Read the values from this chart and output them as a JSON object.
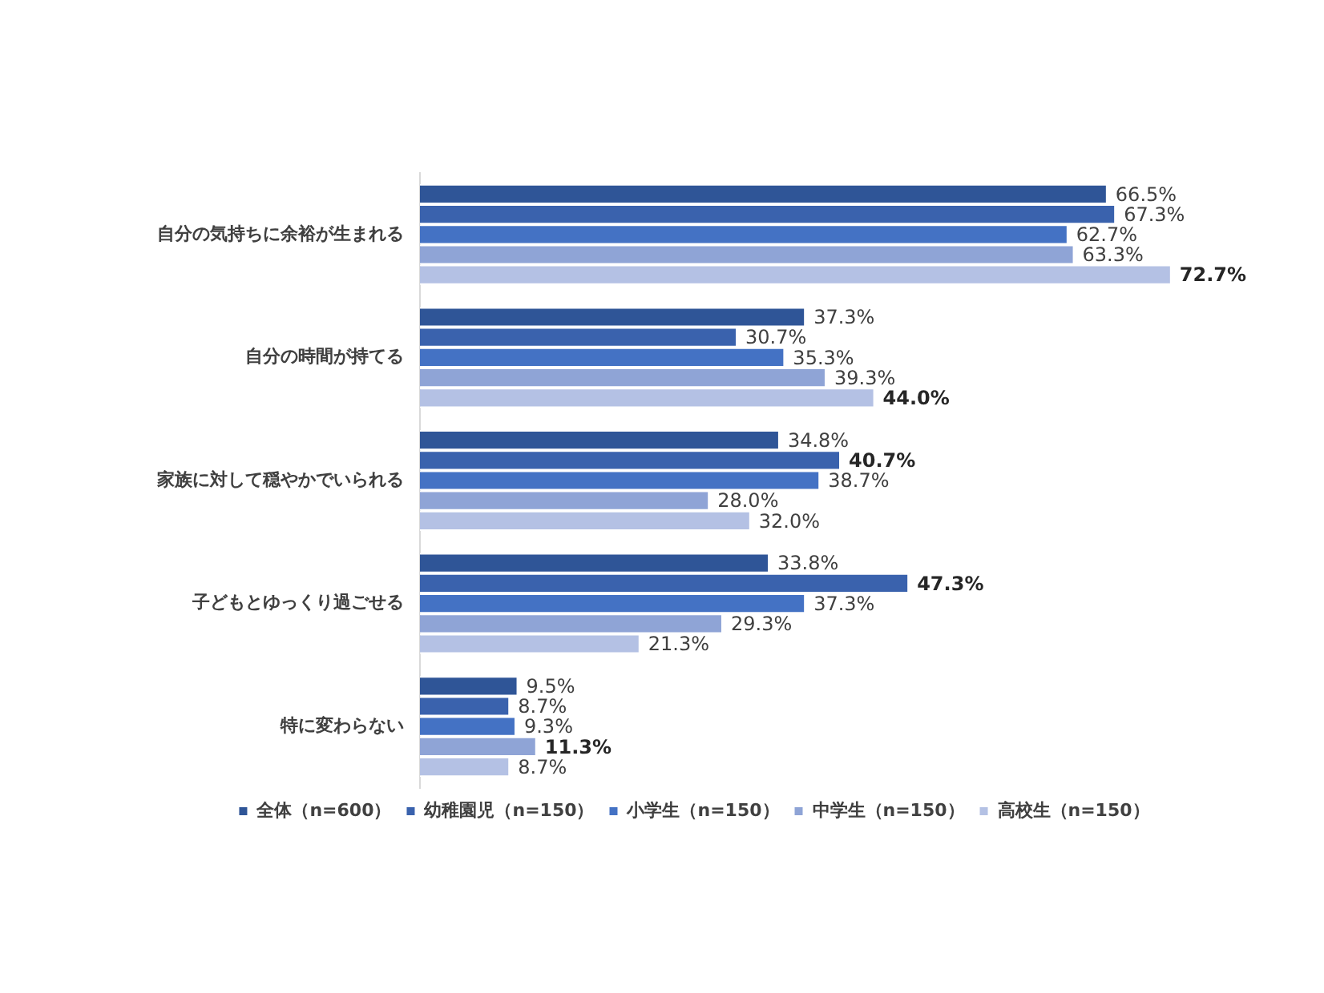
{
  "chart_data": {
    "type": "bar",
    "orientation": "horizontal",
    "categories": [
      "自分の気持ちに余裕が生まれる",
      "自分の時間が持てる",
      "家族に対して穏やかでいられる",
      "子どもとゆっくり過ごせる",
      "特に変わらない"
    ],
    "series": [
      {
        "name": "全体（n=600）",
        "color": "#2f5597",
        "values": [
          66.5,
          37.3,
          34.8,
          33.8,
          9.5
        ],
        "value_labels": [
          "66.5%",
          "37.3%",
          "34.8%",
          "33.8%",
          "9.5%"
        ]
      },
      {
        "name": "幼稚園児（n=150）",
        "color": "#3a62ad",
        "values": [
          67.3,
          30.7,
          40.7,
          47.3,
          8.7
        ],
        "value_labels": [
          "67.3%",
          "30.7%",
          "40.7%",
          "47.3%",
          "8.7%"
        ]
      },
      {
        "name": "小学生（n=150）",
        "color": "#4472c4",
        "values": [
          62.7,
          35.3,
          38.7,
          37.3,
          9.3
        ],
        "value_labels": [
          "62.7%",
          "35.3%",
          "38.7%",
          "37.3%",
          "9.3%"
        ]
      },
      {
        "name": "中学生（n=150）",
        "color": "#8fa4d6",
        "values": [
          63.3,
          39.3,
          28.0,
          29.3,
          11.3
        ],
        "value_labels": [
          "63.3%",
          "39.3%",
          "28.0%",
          "29.3%",
          "11.3%"
        ]
      },
      {
        "name": "高校生（n=150）",
        "color": "#b4c1e4",
        "values": [
          72.7,
          44.0,
          32.0,
          21.3,
          8.7
        ],
        "value_labels": [
          "72.7%",
          "44.0%",
          "32.0%",
          "21.3%",
          "8.7%"
        ]
      }
    ],
    "tick_labels": "y",
    "grid": false,
    "legend": "bottom"
  }
}
